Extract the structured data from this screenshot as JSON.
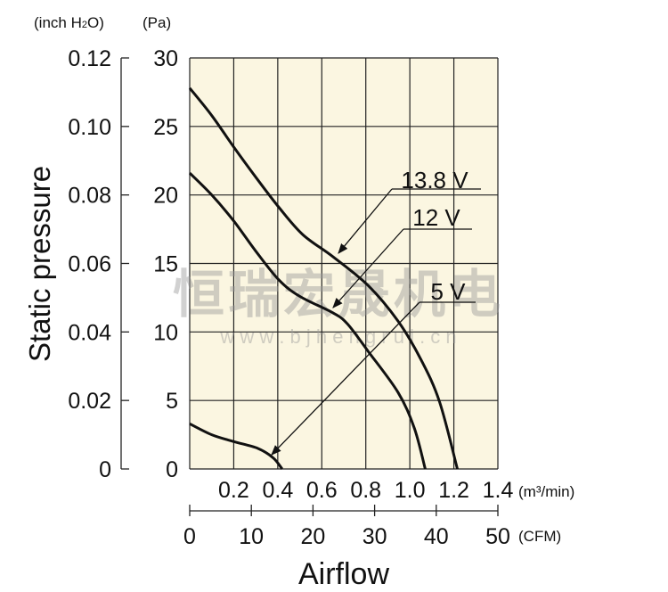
{
  "chart_data": {
    "type": "line",
    "title": "",
    "xlabel": "Airflow",
    "ylabel": "Static pressure",
    "x_unit": "(m³/min)",
    "x2_unit": "(CFM)",
    "y_unit": "(Pa)",
    "y2_unit_prefix": "(inch H",
    "y2_unit_sub": "2",
    "y2_unit_suffix": "O)",
    "xlim": [
      0,
      1.4
    ],
    "ylim": [
      0,
      30
    ],
    "x2lim": [
      0,
      50
    ],
    "grid": true,
    "x_ticks": [
      "0.2",
      "0.4",
      "0.6",
      "0.8",
      "1.0",
      "1.2",
      "1.4"
    ],
    "x2_ticks": [
      "0",
      "10",
      "20",
      "30",
      "40",
      "50"
    ],
    "y_ticks": [
      "0",
      "5",
      "10",
      "15",
      "20",
      "25",
      "30"
    ],
    "y2_ticks": [
      "0",
      "0.02",
      "0.04",
      "0.06",
      "0.08",
      "0.10",
      "0.12"
    ],
    "series": [
      {
        "name": "13.8 V",
        "x": [
          0,
          0.1,
          0.2,
          0.3,
          0.405,
          0.514,
          0.65,
          0.81,
          0.946,
          1.05,
          1.135,
          1.216
        ],
        "y": [
          27.8,
          25.8,
          23.5,
          21.3,
          19.1,
          17.1,
          15.5,
          13.4,
          10.8,
          8.0,
          4.9,
          0
        ]
      },
      {
        "name": "12 V",
        "x": [
          0,
          0.1,
          0.2,
          0.3,
          0.405,
          0.5,
          0.65,
          0.716,
          0.81,
          0.946,
          1.02,
          1.07
        ],
        "y": [
          21.6,
          20.0,
          18.1,
          15.9,
          13.8,
          12.6,
          11.4,
          10.6,
          8.6,
          5.6,
          3.0,
          0
        ]
      },
      {
        "name": "5 V",
        "x": [
          0,
          0.1,
          0.2,
          0.31,
          0.38,
          0.42
        ],
        "y": [
          3.3,
          2.5,
          2.0,
          1.5,
          0.8,
          0
        ]
      }
    ],
    "annotations": [
      "13.8 V",
      "12 V",
      "5 V"
    ]
  },
  "watermark": {
    "cn": "恒瑞宏晟机电",
    "url": "w w w . b j h e n g r u i . c n"
  },
  "colors": {
    "plot_bg": "#fbf6e1",
    "line": "#111111"
  }
}
